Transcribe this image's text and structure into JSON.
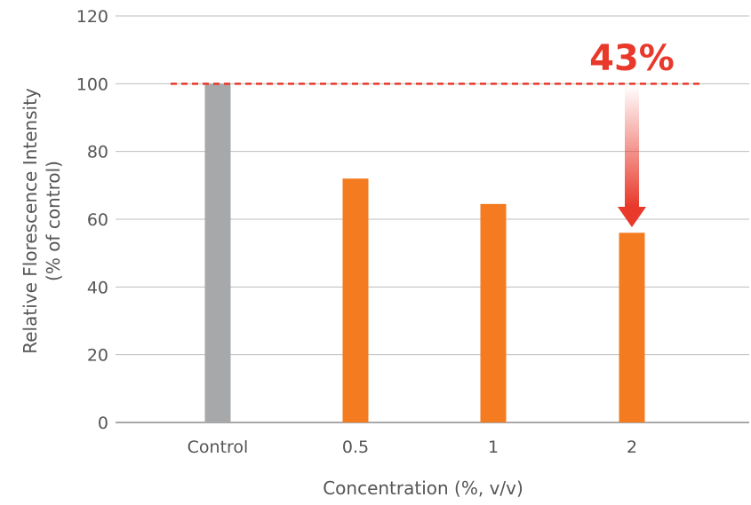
{
  "chart_data": {
    "type": "bar",
    "categories": [
      "Control",
      "0.5",
      "1",
      "2"
    ],
    "values": [
      100,
      72,
      64.5,
      56
    ],
    "bar_colors": [
      "#a7a8aa",
      "#f47b20",
      "#f47b20",
      "#f47b20"
    ],
    "xlabel": "Concentration (%, v/v)",
    "ylabel_line1": "Relative  Florescence  Intensity",
    "ylabel_line2": "(% of control)",
    "ylim": [
      0,
      120
    ],
    "yticks": [
      0,
      20,
      40,
      60,
      80,
      100,
      120
    ],
    "grid": true,
    "reference_line": {
      "value": 100,
      "color": "#e8392b",
      "style": "dashed"
    },
    "annotation": {
      "text": "43%",
      "color": "#e8392b",
      "target_category": "2"
    }
  }
}
